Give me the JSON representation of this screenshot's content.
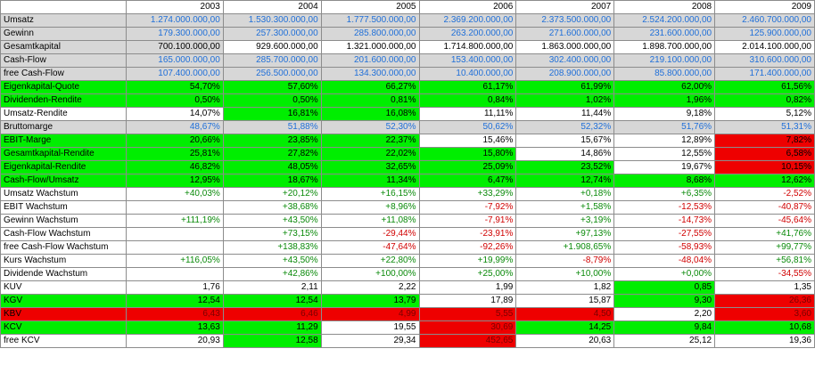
{
  "years": [
    "2003",
    "2004",
    "2005",
    "2006",
    "2007",
    "2008",
    "2009"
  ],
  "colors": {
    "gray": "#d7d7d7",
    "green": "#00ee00",
    "red": "#ee0000",
    "blue_text": "#1f6fd8",
    "green_text": "#0a8a0a",
    "red_text": "#d00000"
  },
  "rows": [
    {
      "label": "Umsatz",
      "rowbg": "gray",
      "values": [
        "1.274.000.000,00",
        "1.530.300.000,00",
        "1.777.500.000,00",
        "2.369.200.000,00",
        "2.373.500.000,00",
        "2.524.200.000,00",
        "2.460.700.000,00"
      ],
      "tc": [
        "blue",
        "blue",
        "blue",
        "blue",
        "blue",
        "blue",
        "blue"
      ]
    },
    {
      "label": "Gewinn",
      "rowbg": "gray",
      "values": [
        "179.300.000,00",
        "257.300.000,00",
        "285.800.000,00",
        "263.200.000,00",
        "271.600.000,00",
        "231.600.000,00",
        "125.900.000,00"
      ],
      "tc": [
        "blue",
        "blue",
        "blue",
        "blue",
        "blue",
        "blue",
        "blue"
      ]
    },
    {
      "label": "Gesamtkapital",
      "rowbg": "gray",
      "values": [
        "700.100.000,00",
        "929.600.000,00",
        "1.321.000.000,00",
        "1.714.800.000,00",
        "1.863.000.000,00",
        "1.898.700.000,00",
        "2.014.100.000,00"
      ],
      "tc": [
        "black",
        "black",
        "black",
        "black",
        "black",
        "black",
        "black"
      ],
      "bg": [
        "gray",
        "white",
        "white",
        "white",
        "white",
        "white",
        "white"
      ]
    },
    {
      "label": "Cash-Flow",
      "rowbg": "gray",
      "values": [
        "165.000.000,00",
        "285.700.000,00",
        "201.600.000,00",
        "153.400.000,00",
        "302.400.000,00",
        "219.100.000,00",
        "310.600.000,00"
      ],
      "tc": [
        "blue",
        "blue",
        "blue",
        "blue",
        "blue",
        "blue",
        "blue"
      ]
    },
    {
      "label": "free Cash-Flow",
      "rowbg": "gray",
      "values": [
        "107.400.000,00",
        "256.500.000,00",
        "134.300.000,00",
        "10.400.000,00",
        "208.900.000,00",
        "85.800.000,00",
        "171.400.000,00"
      ],
      "tc": [
        "blue",
        "blue",
        "blue",
        "blue",
        "blue",
        "blue",
        "blue"
      ]
    },
    {
      "label": "Eigenkapital-Quote",
      "rowbg": "green",
      "values": [
        "54,70%",
        "57,60%",
        "66,27%",
        "61,17%",
        "61,99%",
        "62,00%",
        "61,56%"
      ],
      "tc": [
        "black",
        "black",
        "black",
        "black",
        "black",
        "black",
        "black"
      ],
      "bg": [
        "green",
        "green",
        "green",
        "green",
        "green",
        "green",
        "green"
      ]
    },
    {
      "label": "Dividenden-Rendite",
      "rowbg": "green",
      "values": [
        "0,50%",
        "0,50%",
        "0,81%",
        "0,84%",
        "1,02%",
        "1,96%",
        "0,82%"
      ],
      "tc": [
        "black",
        "black",
        "black",
        "black",
        "black",
        "black",
        "black"
      ],
      "bg": [
        "green",
        "green",
        "green",
        "green",
        "green",
        "green",
        "green"
      ]
    },
    {
      "label": "Umsatz-Rendite",
      "rowbg": "white",
      "values": [
        "14,07%",
        "16,81%",
        "16,08%",
        "11,11%",
        "11,44%",
        "9,18%",
        "5,12%"
      ],
      "tc": [
        "black",
        "black",
        "black",
        "black",
        "black",
        "black",
        "black"
      ],
      "bg": [
        "white",
        "green",
        "green",
        "white",
        "white",
        "white",
        "white"
      ]
    },
    {
      "label": "Bruttomarge",
      "rowbg": "gray",
      "values": [
        "48,67%",
        "51,88%",
        "52,30%",
        "50,62%",
        "52,32%",
        "51,76%",
        "51,31%"
      ],
      "tc": [
        "blue",
        "blue",
        "blue",
        "blue",
        "blue",
        "blue",
        "blue"
      ]
    },
    {
      "label": "EBIT-Marge",
      "rowbg": "green",
      "values": [
        "20,66%",
        "23,85%",
        "22,37%",
        "15,46%",
        "15,67%",
        "12,89%",
        "7,82%"
      ],
      "tc": [
        "black",
        "black",
        "black",
        "black",
        "black",
        "black",
        "black"
      ],
      "bg": [
        "green",
        "green",
        "green",
        "white",
        "white",
        "white",
        "red"
      ]
    },
    {
      "label": "Gesamtkapital-Rendite",
      "rowbg": "green",
      "values": [
        "25,81%",
        "27,82%",
        "22,02%",
        "15,80%",
        "14,86%",
        "12,55%",
        "6,58%"
      ],
      "tc": [
        "black",
        "black",
        "black",
        "black",
        "black",
        "black",
        "black"
      ],
      "bg": [
        "green",
        "green",
        "green",
        "green",
        "white",
        "white",
        "red"
      ]
    },
    {
      "label": "Eigenkapital-Rendite",
      "rowbg": "green",
      "values": [
        "46,82%",
        "48,05%",
        "32,65%",
        "25,09%",
        "23,52%",
        "19,67%",
        "10,15%"
      ],
      "tc": [
        "black",
        "black",
        "black",
        "black",
        "black",
        "black",
        "black"
      ],
      "bg": [
        "green",
        "green",
        "green",
        "green",
        "green",
        "white",
        "red"
      ]
    },
    {
      "label": "Cash-Flow/Umsatz",
      "rowbg": "green",
      "values": [
        "12,95%",
        "18,67%",
        "11,34%",
        "6,47%",
        "12,74%",
        "8,68%",
        "12,62%"
      ],
      "tc": [
        "black",
        "black",
        "black",
        "black",
        "black",
        "black",
        "black"
      ],
      "bg": [
        "green",
        "green",
        "green",
        "green",
        "green",
        "green",
        "green"
      ]
    },
    {
      "label": "Umsatz Wachstum",
      "rowbg": "white",
      "values": [
        "+40,03%",
        "+20,12%",
        "+16,15%",
        "+33,29%",
        "+0,18%",
        "+6,35%",
        "-2,52%"
      ],
      "tc": [
        "green",
        "green",
        "green",
        "green",
        "green",
        "green",
        "red"
      ]
    },
    {
      "label": "EBIT Wachstum",
      "rowbg": "white",
      "values": [
        "",
        "+38,68%",
        "+8,96%",
        "-7,92%",
        "+1,58%",
        "-12,53%",
        "-40,87%"
      ],
      "tc": [
        "black",
        "green",
        "green",
        "red",
        "green",
        "red",
        "red"
      ]
    },
    {
      "label": "Gewinn Wachstum",
      "rowbg": "white",
      "values": [
        "+111,19%",
        "+43,50%",
        "+11,08%",
        "-7,91%",
        "+3,19%",
        "-14,73%",
        "-45,64%"
      ],
      "tc": [
        "green",
        "green",
        "green",
        "red",
        "green",
        "red",
        "red"
      ]
    },
    {
      "label": "Cash-Flow Wachstum",
      "rowbg": "white",
      "values": [
        "",
        "+73,15%",
        "-29,44%",
        "-23,91%",
        "+97,13%",
        "-27,55%",
        "+41,76%"
      ],
      "tc": [
        "black",
        "green",
        "red",
        "red",
        "green",
        "red",
        "green"
      ]
    },
    {
      "label": "free Cash-Flow Wachstum",
      "rowbg": "white",
      "values": [
        "",
        "+138,83%",
        "-47,64%",
        "-92,26%",
        "+1.908,65%",
        "-58,93%",
        "+99,77%"
      ],
      "tc": [
        "black",
        "green",
        "red",
        "red",
        "green",
        "red",
        "green"
      ]
    },
    {
      "label": "Kurs Wachstum",
      "rowbg": "white",
      "values": [
        "+116,05%",
        "+43,50%",
        "+22,80%",
        "+19,99%",
        "-8,79%",
        "-48,04%",
        "+56,81%"
      ],
      "tc": [
        "green",
        "green",
        "green",
        "green",
        "red",
        "red",
        "green"
      ]
    },
    {
      "label": "Dividende Wachstum",
      "rowbg": "white",
      "values": [
        "",
        "+42,86%",
        "+100,00%",
        "+25,00%",
        "+10,00%",
        "+0,00%",
        "-34,55%"
      ],
      "tc": [
        "black",
        "green",
        "green",
        "green",
        "green",
        "green",
        "red"
      ]
    },
    {
      "label": "KUV",
      "rowbg": "white",
      "values": [
        "1,76",
        "2,11",
        "2,22",
        "1,99",
        "1,82",
        "0,85",
        "1,35"
      ],
      "tc": [
        "black",
        "black",
        "black",
        "black",
        "black",
        "black",
        "black"
      ],
      "bg": [
        "white",
        "white",
        "white",
        "white",
        "white",
        "green",
        "white"
      ]
    },
    {
      "label": "KGV",
      "rowbg": "green",
      "values": [
        "12,54",
        "12,54",
        "13,79",
        "17,89",
        "15,87",
        "9,30",
        "26,36"
      ],
      "tc": [
        "black",
        "black",
        "black",
        "black",
        "black",
        "black",
        "dred"
      ],
      "bg": [
        "green",
        "green",
        "green",
        "white",
        "white",
        "green",
        "red"
      ]
    },
    {
      "label": "KBV",
      "rowbg": "red",
      "values": [
        "6,43",
        "6,46",
        "4,99",
        "5,55",
        "4,50",
        "2,20",
        "3,60"
      ],
      "tc": [
        "dred",
        "dred",
        "dred",
        "dred",
        "dred",
        "black",
        "dred"
      ],
      "bg": [
        "red",
        "red",
        "red",
        "red",
        "red",
        "white",
        "red"
      ]
    },
    {
      "label": "KCV",
      "rowbg": "green",
      "values": [
        "13,63",
        "11,29",
        "19,55",
        "30,69",
        "14,25",
        "9,84",
        "10,68"
      ],
      "tc": [
        "black",
        "black",
        "black",
        "dred",
        "black",
        "black",
        "black"
      ],
      "bg": [
        "green",
        "green",
        "white",
        "red",
        "green",
        "green",
        "green"
      ]
    },
    {
      "label": "free KCV",
      "rowbg": "white",
      "values": [
        "20,93",
        "12,58",
        "29,34",
        "452,65",
        "20,63",
        "25,12",
        "19,36"
      ],
      "tc": [
        "black",
        "black",
        "black",
        "dred",
        "black",
        "black",
        "black"
      ],
      "bg": [
        "white",
        "green",
        "white",
        "red",
        "white",
        "white",
        "white"
      ]
    }
  ]
}
